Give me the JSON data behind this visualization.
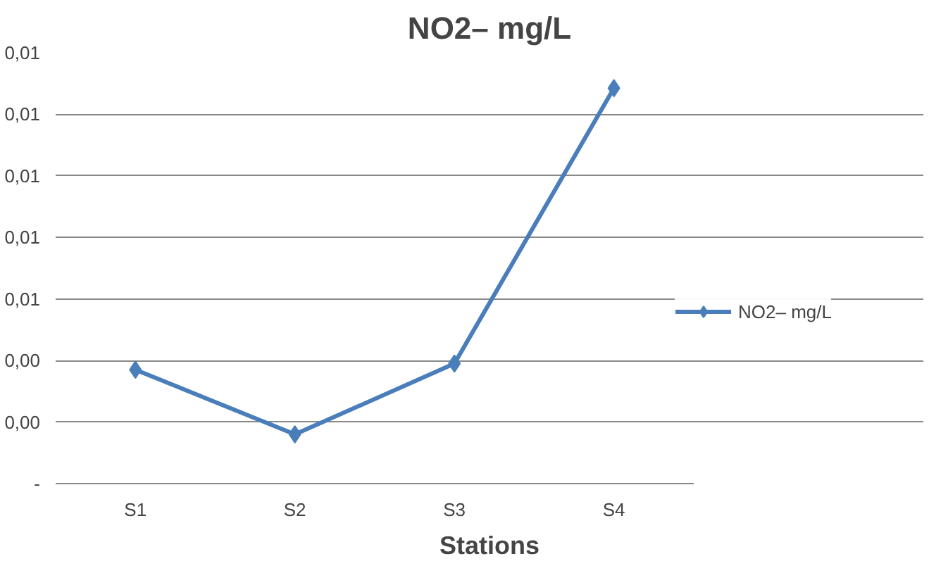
{
  "chart_data": {
    "type": "line",
    "title": "NO2– mg/L",
    "xlabel": "Stations",
    "categories": [
      "S1",
      "S2",
      "S3",
      "S4"
    ],
    "series": [
      {
        "name": "NO2– mg/L",
        "color": "#4a7ebb",
        "values": [
          0.0037,
          0.0016,
          0.0039,
          0.01285
        ]
      }
    ],
    "ylim": [
      0,
      0.014
    ],
    "yticks": [
      {
        "value": 0,
        "label": "-"
      },
      {
        "value": 0.002,
        "label": "0,00"
      },
      {
        "value": 0.004,
        "label": "0,00"
      },
      {
        "value": 0.006,
        "label": "0,01"
      },
      {
        "value": 0.008,
        "label": "0,01"
      },
      {
        "value": 0.01,
        "label": "0,01"
      },
      {
        "value": 0.012,
        "label": "0,01"
      },
      {
        "value": 0.014,
        "label": "0,01"
      }
    ],
    "grid": "y",
    "legend": "right",
    "marker": "diamond",
    "line_style": "solid"
  }
}
